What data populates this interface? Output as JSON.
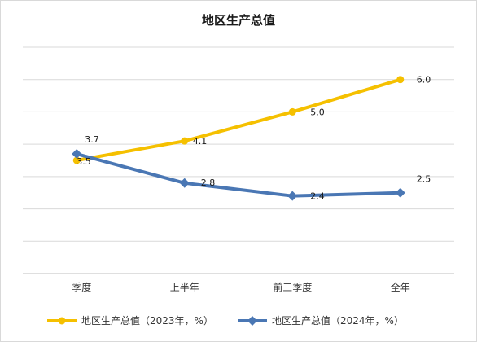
{
  "chart_data": {
    "type": "line",
    "title": "地区生产总值",
    "xlabel": "",
    "ylabel": "",
    "categories": [
      "一季度",
      "上半年",
      "前三季度",
      "全年"
    ],
    "ylim": [
      0,
      7
    ],
    "grid": true,
    "legend_position": "bottom",
    "series": [
      {
        "name": "地区生产总值（2023年，%）",
        "values": [
          3.5,
          4.1,
          5.0,
          6.0
        ],
        "color": "#F5C000",
        "marker": "circle"
      },
      {
        "name": "地区生产总值（2024年，%）",
        "values": [
          3.7,
          2.8,
          2.4,
          2.5
        ],
        "color": "#4A77B4",
        "marker": "diamond"
      }
    ]
  }
}
